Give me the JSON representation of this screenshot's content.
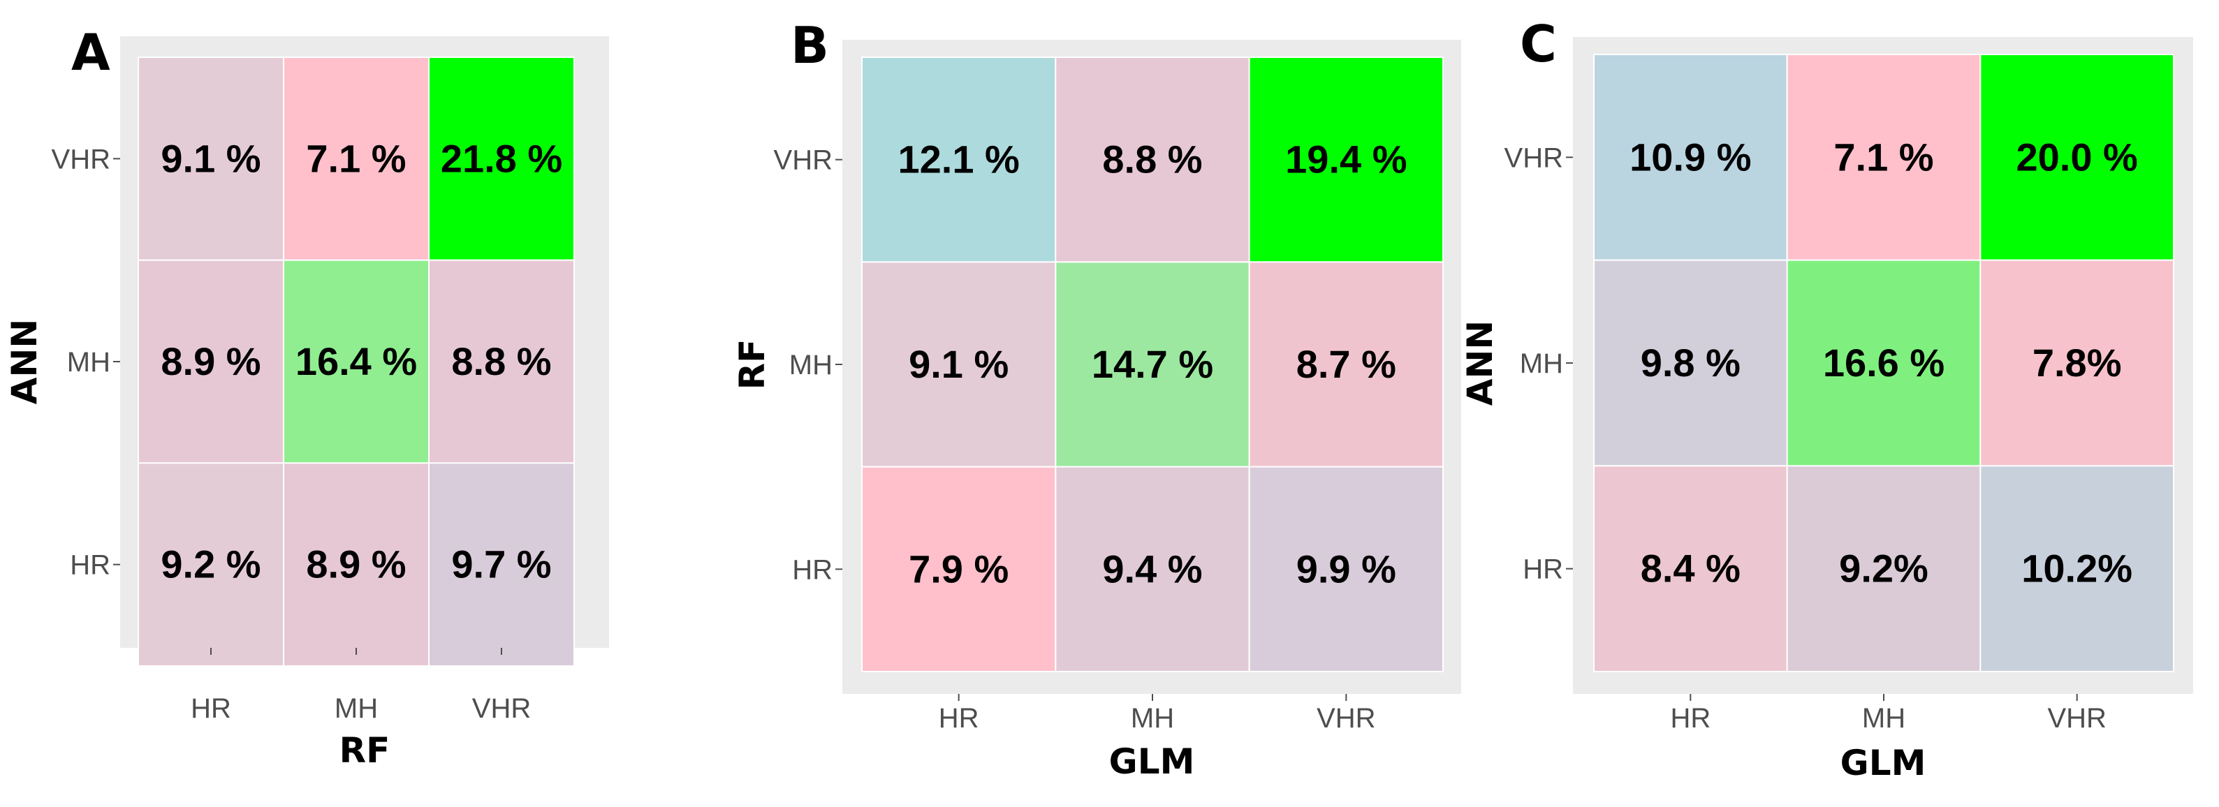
{
  "chart_data": [
    {
      "type": "heatmap",
      "panel_label": "A",
      "xlabel": "RF",
      "ylabel": "ANN",
      "x_categories": [
        "HR",
        "MH",
        "VHR"
      ],
      "y_categories": [
        "VHR",
        "MH",
        "HR"
      ],
      "values": [
        [
          9.1,
          7.1,
          21.8
        ],
        [
          8.9,
          16.4,
          8.8
        ],
        [
          9.2,
          8.9,
          9.7
        ]
      ],
      "cell_labels": [
        [
          "9.1 %",
          "7.1 %",
          "21.8 %"
        ],
        [
          "8.9  %",
          "16.4 %",
          "8.8  %"
        ],
        [
          "9.2 %",
          "8.9  %",
          "9.7 %"
        ]
      ],
      "cell_colors": [
        [
          "#e4ccd6",
          "#ffc0cb",
          "#00ff00"
        ],
        [
          "#e6c8d4",
          "#90ee90",
          "#e6c8d4"
        ],
        [
          "#e4ccd6",
          "#e6c8d4",
          "#d9ccda"
        ]
      ]
    },
    {
      "type": "heatmap",
      "panel_label": "B",
      "xlabel": "GLM",
      "ylabel": "RF",
      "x_categories": [
        "HR",
        "MH",
        "VHR"
      ],
      "y_categories": [
        "VHR",
        "MH",
        "HR"
      ],
      "values": [
        [
          12.1,
          8.8,
          19.4
        ],
        [
          9.1,
          14.7,
          8.7
        ],
        [
          7.9,
          9.4,
          9.9
        ]
      ],
      "cell_labels": [
        [
          "12.1 %",
          "8.8 %",
          "19.4 %"
        ],
        [
          "9.1 %",
          "14.7 %",
          "8.7 %"
        ],
        [
          "7.9 %",
          "9.4 %",
          "9.9 %"
        ]
      ],
      "cell_colors": [
        [
          "#addadd",
          "#e6c8d4",
          "#00ff00"
        ],
        [
          "#e4ccd6",
          "#9ce8a0",
          "#f0c4cf"
        ],
        [
          "#ffc0cb",
          "#e0cad6",
          "#d9ccda"
        ]
      ]
    },
    {
      "type": "heatmap",
      "panel_label": "C",
      "xlabel": "GLM",
      "ylabel": "ANN",
      "x_categories": [
        "HR",
        "MH",
        "VHR"
      ],
      "y_categories": [
        "VHR",
        "MH",
        "HR"
      ],
      "values": [
        [
          10.9,
          7.1,
          20.0
        ],
        [
          9.8,
          16.6,
          7.8
        ],
        [
          8.4,
          9.2,
          10.2
        ]
      ],
      "cell_labels": [
        [
          "10.9 %",
          "7.1 %",
          "20.0 %"
        ],
        [
          "9.8 %",
          "16.6 %",
          "7.8%"
        ],
        [
          "8.4 %",
          "9.2%",
          "10.2%"
        ]
      ],
      "cell_colors": [
        [
          "#bad4e0",
          "#ffc0cb",
          "#00ff00"
        ],
        [
          "#d2cfda",
          "#7ff07f",
          "#f7c2cb"
        ],
        [
          "#ecc6d0",
          "#dacbd6",
          "#c8d0dc"
        ]
      ]
    }
  ]
}
